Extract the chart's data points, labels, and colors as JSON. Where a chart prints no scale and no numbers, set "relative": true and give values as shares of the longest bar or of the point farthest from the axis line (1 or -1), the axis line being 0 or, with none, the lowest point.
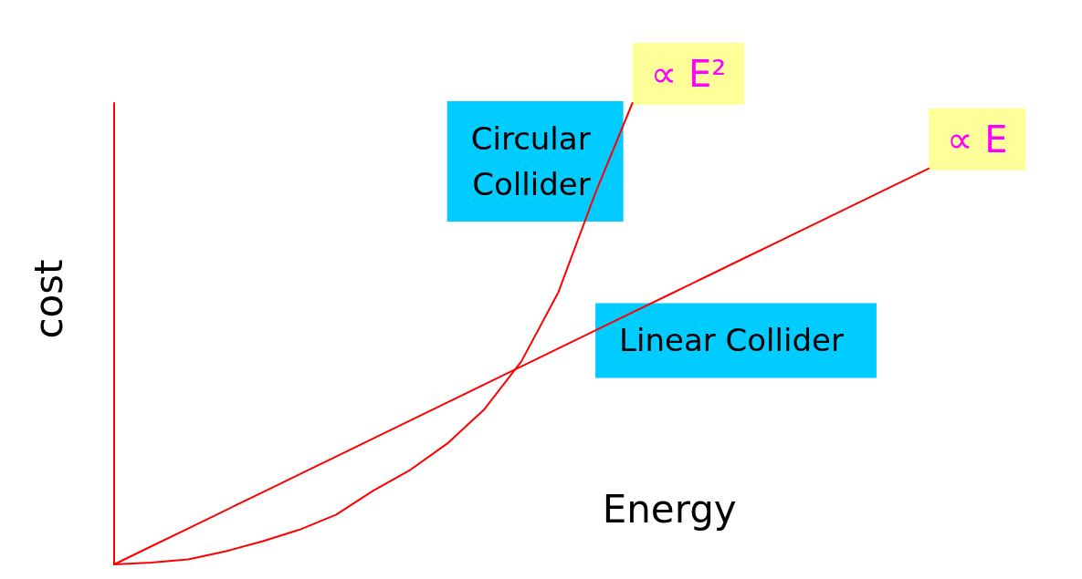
{
  "chart_data": {
    "type": "line",
    "relative": true,
    "xlabel": "Energy",
    "ylabel": "cost",
    "legend": false,
    "grid": false,
    "marker": "none",
    "line_style": "solid",
    "categories": [
      null,
      null,
      null,
      null,
      null,
      null,
      null,
      null,
      null,
      null,
      null,
      null,
      null,
      null,
      null,
      null,
      null,
      null,
      null,
      null,
      null,
      null,
      null
    ],
    "series": [
      {
        "name": "Circular Collider",
        "color": "#ff0000",
        "values": [
          0,
          0.004,
          0.011,
          0.028,
          0.05,
          0.075,
          0.108,
          0.16,
          0.205,
          0.262,
          0.336,
          0.44,
          0.59,
          0.805,
          1,
          null,
          null,
          null,
          null,
          null,
          null,
          null,
          null
        ]
      },
      {
        "name": "Linear Collider",
        "color": "#ff0000",
        "values": [
          0,
          0.039,
          0.078,
          0.117,
          0.156,
          0.195,
          0.234,
          0.273,
          0.312,
          0.351,
          0.39,
          0.429,
          0.468,
          0.507,
          0.546,
          0.585,
          0.624,
          0.663,
          0.702,
          0.741,
          0.78,
          0.819,
          0.858
        ]
      }
    ],
    "annotations": [
      "∝ E²",
      "∝ E"
    ]
  }
}
